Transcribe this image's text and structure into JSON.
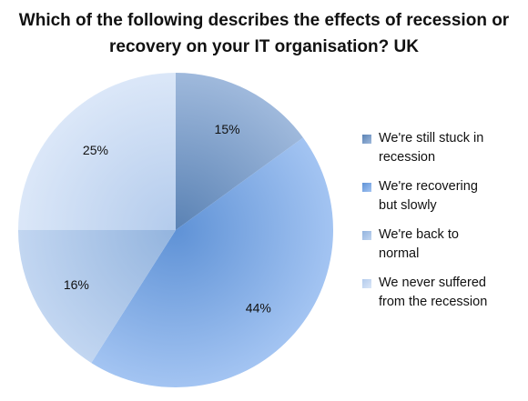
{
  "chart_data": {
    "type": "pie",
    "title_lines": [
      "Which of the following describes the effects of recession or",
      "recovery on your IT organisation? UK"
    ],
    "slices": [
      {
        "label": "We're still stuck in recession",
        "legend_lines": [
          "We're still stuck in",
          "recession"
        ],
        "value": 15,
        "display": "15%",
        "color": "#5a82b4",
        "color_light": "#9fb9dc"
      },
      {
        "label": "We're recovering but slowly",
        "legend_lines": [
          "We're recovering",
          "but slowly"
        ],
        "value": 44,
        "display": "44%",
        "color": "#5f92d6",
        "color_light": "#a3c4f2"
      },
      {
        "label": "We're back to normal",
        "legend_lines": [
          "We're back to",
          "normal"
        ],
        "value": 16,
        "display": "16%",
        "color": "#93b4de",
        "color_light": "#c2d6f1"
      },
      {
        "label": "We never suffered from the recession",
        "legend_lines": [
          "We never suffered",
          "from the recession"
        ],
        "value": 25,
        "display": "25%",
        "color": "#b3cbec",
        "color_light": "#dbe7f8"
      }
    ],
    "legend_position": "right"
  }
}
